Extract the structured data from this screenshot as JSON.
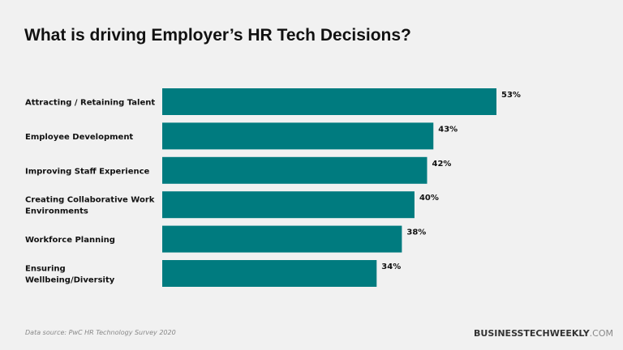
{
  "chart_data": {
    "type": "bar",
    "orientation": "horizontal",
    "title": "What is driving Employer’s HR Tech Decisions?",
    "categories": [
      [
        "Attracting / Retaining Talent"
      ],
      [
        "Employee Development"
      ],
      [
        "Improving Staff Experience"
      ],
      [
        "Creating Collaborative Work",
        "Environments"
      ],
      [
        "Workforce Planning"
      ],
      [
        "Ensuring",
        "Wellbeing/Diversity"
      ]
    ],
    "values": [
      53,
      43,
      42,
      40,
      38,
      34
    ],
    "value_labels": [
      "53%",
      "43%",
      "42%",
      "40%",
      "38%",
      "34%"
    ],
    "bar_color": "#007b7f",
    "grid": false,
    "legend": "none"
  },
  "footer": {
    "source": "Data source: PwC HR Technology Survey 2020",
    "brand_bold": "BUSINESSTECHWEEKLY",
    "brand_suffix": ".COM"
  }
}
